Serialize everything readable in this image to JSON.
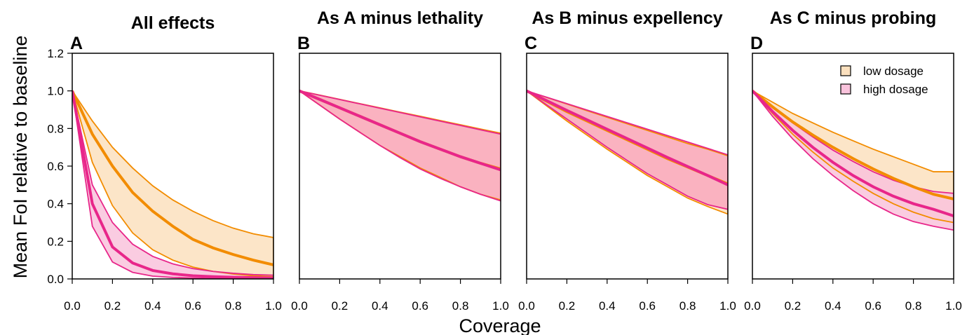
{
  "figure": {
    "ylabel": "Mean FoI relative to baseline",
    "xlabel": "Coverage",
    "legend": {
      "position": "top-right of panel D",
      "items": [
        {
          "label": "low dosage",
          "line_color": "#F28C00",
          "fill_color": "#FBE0BE"
        },
        {
          "label": "high dosage",
          "line_color": "#E8268A",
          "fill_color": "#F9C3DC"
        }
      ]
    }
  },
  "chart_data": [
    {
      "type": "area",
      "panel_label": "A",
      "title": "All effects",
      "xlim": [
        0,
        1
      ],
      "ylim": [
        0,
        1.2
      ],
      "xticks": [
        "0.0",
        "0.2",
        "0.4",
        "0.6",
        "0.8",
        "1.0"
      ],
      "yticks": [
        "0.0",
        "0.2",
        "0.4",
        "0.6",
        "0.8",
        "1.0",
        "1.2"
      ],
      "x": [
        0.0,
        0.1,
        0.2,
        0.3,
        0.4,
        0.5,
        0.6,
        0.7,
        0.8,
        0.9,
        1.0
      ],
      "series": [
        {
          "name": "low dosage",
          "fill": "#FBE0BE",
          "line": "#F28C00",
          "median": [
            1.0,
            0.77,
            0.6,
            0.46,
            0.36,
            0.28,
            0.21,
            0.165,
            0.13,
            0.1,
            0.075
          ],
          "lower": [
            1.0,
            0.62,
            0.39,
            0.245,
            0.155,
            0.1,
            0.063,
            0.04,
            0.026,
            0.017,
            0.012
          ],
          "upper": [
            1.0,
            0.84,
            0.7,
            0.59,
            0.495,
            0.42,
            0.36,
            0.31,
            0.27,
            0.24,
            0.22
          ]
        },
        {
          "name": "high dosage",
          "fill": "#F9C3DC",
          "line": "#E8268A",
          "median": [
            1.0,
            0.4,
            0.17,
            0.085,
            0.045,
            0.027,
            0.017,
            0.012,
            0.009,
            0.007,
            0.005
          ],
          "lower": [
            1.0,
            0.28,
            0.09,
            0.035,
            0.015,
            0.008,
            0.005,
            0.003,
            0.002,
            0.001,
            0.001
          ],
          "upper": [
            1.0,
            0.5,
            0.3,
            0.185,
            0.12,
            0.08,
            0.055,
            0.04,
            0.03,
            0.023,
            0.02
          ]
        }
      ]
    },
    {
      "type": "area",
      "panel_label": "B",
      "title": "As A minus lethality",
      "xlim": [
        0,
        1
      ],
      "ylim": [
        0,
        1.2
      ],
      "xticks": [
        "0.0",
        "0.2",
        "0.4",
        "0.6",
        "0.8",
        "1.0"
      ],
      "yticks": [],
      "x": [
        0.0,
        0.1,
        0.2,
        0.3,
        0.4,
        0.5,
        0.6,
        0.7,
        0.8,
        0.9,
        1.0
      ],
      "series": [
        {
          "name": "low dosage",
          "fill": "#FBE0BE",
          "line": "#F28C00",
          "median": [
            1.0,
            0.955,
            0.91,
            0.865,
            0.82,
            0.775,
            0.73,
            0.69,
            0.65,
            0.615,
            0.585
          ],
          "lower": [
            1.0,
            0.925,
            0.85,
            0.78,
            0.71,
            0.65,
            0.59,
            0.54,
            0.49,
            0.45,
            0.42
          ],
          "upper": [
            1.0,
            0.978,
            0.955,
            0.932,
            0.91,
            0.887,
            0.865,
            0.842,
            0.82,
            0.797,
            0.775
          ]
        },
        {
          "name": "high dosage",
          "fill": "#F9A9BE",
          "line": "#E8268A",
          "median": [
            1.0,
            0.955,
            0.91,
            0.865,
            0.82,
            0.775,
            0.73,
            0.69,
            0.65,
            0.615,
            0.58
          ],
          "lower": [
            1.0,
            0.925,
            0.85,
            0.78,
            0.71,
            0.645,
            0.585,
            0.535,
            0.49,
            0.45,
            0.415
          ],
          "upper": [
            1.0,
            0.977,
            0.954,
            0.931,
            0.908,
            0.885,
            0.862,
            0.839,
            0.816,
            0.793,
            0.77
          ]
        }
      ]
    },
    {
      "type": "area",
      "panel_label": "C",
      "title": "As B minus expellency",
      "xlim": [
        0,
        1
      ],
      "ylim": [
        0,
        1.2
      ],
      "xticks": [
        "0.0",
        "0.2",
        "0.4",
        "0.6",
        "0.8",
        "1.0"
      ],
      "yticks": [],
      "x": [
        0.0,
        0.1,
        0.2,
        0.3,
        0.4,
        0.5,
        0.6,
        0.7,
        0.8,
        0.9,
        1.0
      ],
      "series": [
        {
          "name": "low dosage",
          "fill": "#FBE0BE",
          "line": "#F28C00",
          "median": [
            1.0,
            0.945,
            0.89,
            0.84,
            0.79,
            0.74,
            0.69,
            0.64,
            0.595,
            0.55,
            0.505
          ],
          "lower": [
            1.0,
            0.92,
            0.84,
            0.765,
            0.69,
            0.62,
            0.55,
            0.49,
            0.43,
            0.385,
            0.345
          ],
          "upper": [
            1.0,
            0.965,
            0.93,
            0.895,
            0.86,
            0.825,
            0.79,
            0.755,
            0.72,
            0.69,
            0.655
          ]
        },
        {
          "name": "high dosage",
          "fill": "#F9A9BE",
          "line": "#E8268A",
          "median": [
            1.0,
            0.948,
            0.896,
            0.846,
            0.796,
            0.746,
            0.696,
            0.646,
            0.598,
            0.55,
            0.5
          ],
          "lower": [
            1.0,
            0.925,
            0.85,
            0.775,
            0.7,
            0.63,
            0.56,
            0.5,
            0.44,
            0.395,
            0.37
          ],
          "upper": [
            1.0,
            0.966,
            0.932,
            0.898,
            0.864,
            0.83,
            0.796,
            0.762,
            0.728,
            0.694,
            0.66
          ]
        }
      ]
    },
    {
      "type": "area",
      "panel_label": "D",
      "title": "As C minus probing",
      "xlim": [
        0,
        1
      ],
      "ylim": [
        0,
        1.2
      ],
      "xticks": [
        "0.0",
        "0.2",
        "0.4",
        "0.6",
        "0.8",
        "1.0"
      ],
      "yticks": [],
      "x": [
        0.0,
        0.1,
        0.2,
        0.3,
        0.4,
        0.5,
        0.6,
        0.7,
        0.8,
        0.9,
        1.0
      ],
      "series": [
        {
          "name": "low dosage",
          "fill": "#FBE0BE",
          "line": "#F28C00",
          "median": [
            1.0,
            0.915,
            0.835,
            0.765,
            0.7,
            0.64,
            0.585,
            0.535,
            0.49,
            0.45,
            0.425
          ],
          "lower": [
            1.0,
            0.88,
            0.77,
            0.675,
            0.59,
            0.52,
            0.455,
            0.4,
            0.355,
            0.32,
            0.3
          ],
          "upper": [
            1.0,
            0.94,
            0.88,
            0.83,
            0.78,
            0.735,
            0.69,
            0.65,
            0.61,
            0.57,
            0.57
          ]
        },
        {
          "name": "high dosage",
          "fill": "#F9C3DC",
          "line": "#E8268A",
          "median": [
            1.0,
            0.89,
            0.79,
            0.7,
            0.62,
            0.55,
            0.49,
            0.44,
            0.4,
            0.37,
            0.335
          ],
          "lower": [
            1.0,
            0.865,
            0.745,
            0.64,
            0.55,
            0.47,
            0.4,
            0.345,
            0.305,
            0.28,
            0.26
          ],
          "upper": [
            1.0,
            0.91,
            0.83,
            0.755,
            0.685,
            0.625,
            0.57,
            0.525,
            0.49,
            0.465,
            0.455
          ]
        }
      ]
    }
  ]
}
